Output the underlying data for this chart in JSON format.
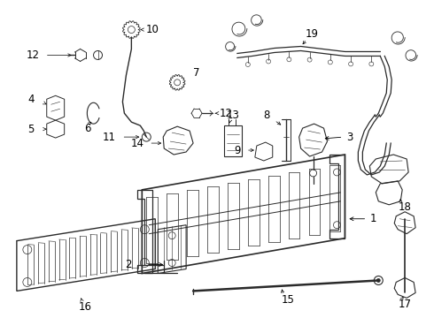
{
  "bg_color": "#ffffff",
  "line_color": "#2a2a2a",
  "text_color": "#000000",
  "font_size": 8.5,
  "figsize": [
    4.9,
    3.6
  ],
  "dpi": 100
}
